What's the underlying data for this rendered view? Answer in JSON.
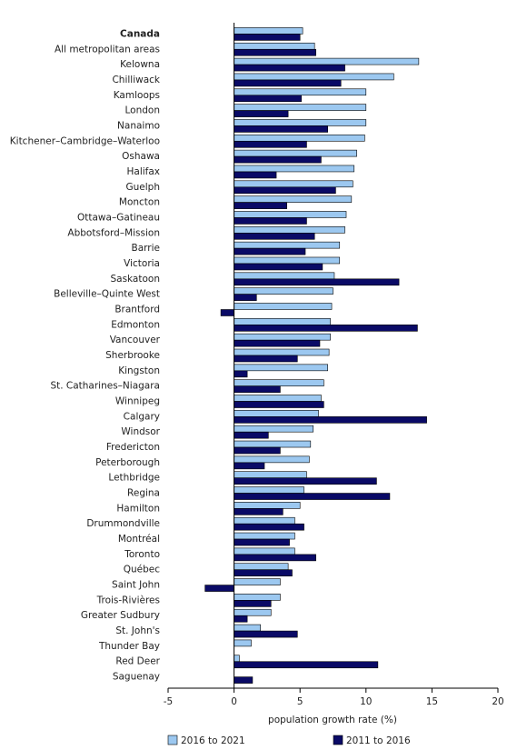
{
  "chart_data": {
    "type": "hbar",
    "xlabel": "population growth rate (%)",
    "categories": [
      "Canada",
      "All metropolitan areas",
      "Kelowna",
      "Chilliwack",
      "Kamloops",
      "London",
      "Nanaimo",
      "Kitchener–Cambridge–Waterloo",
      "Oshawa",
      "Halifax",
      "Guelph",
      "Moncton",
      "Ottawa–Gatineau",
      "Abbotsford–Mission",
      "Barrie",
      "Victoria",
      "Saskatoon",
      "Belleville–Quinte West",
      "Brantford",
      "Edmonton",
      "Vancouver",
      "Sherbrooke",
      "Kingston",
      "St. Catharines–Niagara",
      "Winnipeg",
      "Calgary",
      "Windsor",
      "Fredericton",
      "Peterborough",
      "Lethbridge",
      "Regina",
      "Hamilton",
      "Drummondville",
      "Montréal",
      "Toronto",
      "Québec",
      "Saint John",
      "Trois-Rivières",
      "Greater Sudbury",
      "St. John's",
      "Thunder Bay",
      "Red Deer",
      "Saguenay"
    ],
    "series": [
      {
        "name": "2016 to 2021",
        "color": "#9cc8f0",
        "values": [
          5.2,
          6.1,
          14.0,
          12.1,
          10.0,
          10.0,
          10.0,
          9.9,
          9.3,
          9.1,
          9.0,
          8.9,
          8.5,
          8.4,
          8.0,
          8.0,
          7.6,
          7.5,
          7.4,
          7.3,
          7.3,
          7.2,
          7.1,
          6.8,
          6.6,
          6.4,
          6.0,
          5.8,
          5.7,
          5.5,
          5.3,
          5.0,
          4.6,
          4.6,
          4.6,
          4.1,
          3.5,
          3.5,
          2.8,
          2.0,
          1.3,
          0.4,
          0.0
        ]
      },
      {
        "name": "2011 to 2016",
        "color": "#0a0a66",
        "values": [
          5.0,
          6.2,
          8.4,
          8.1,
          5.1,
          4.1,
          7.1,
          5.5,
          6.6,
          3.2,
          7.7,
          4.0,
          5.5,
          6.1,
          5.4,
          6.7,
          12.5,
          1.7,
          -1.0,
          13.9,
          6.5,
          4.8,
          1.0,
          3.5,
          6.8,
          14.6,
          2.6,
          3.5,
          2.3,
          10.8,
          11.8,
          3.7,
          5.3,
          4.2,
          6.2,
          4.4,
          -2.2,
          2.8,
          1.0,
          4.8,
          0.0,
          10.9,
          1.4
        ]
      }
    ],
    "xlim": [
      -5,
      20
    ],
    "xticks": [
      -5,
      0,
      5,
      10,
      15,
      20
    ],
    "bold_category": "Canada",
    "legend": "bottom"
  }
}
